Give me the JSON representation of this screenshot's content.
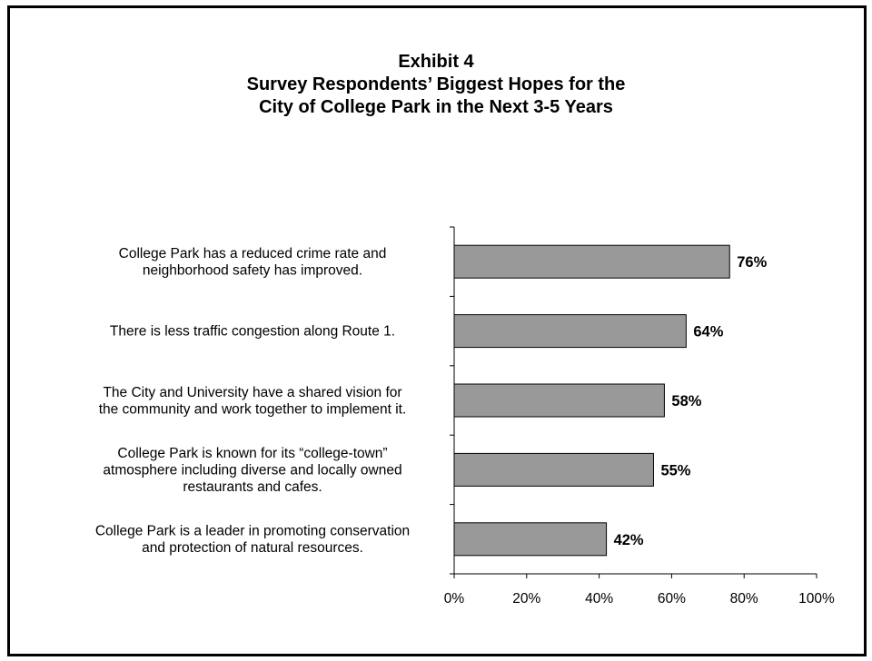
{
  "chart_data": {
    "type": "bar",
    "orientation": "horizontal",
    "title_lines": [
      "Exhibit 4",
      "Survey Respondents’ Biggest Hopes for the",
      "City of College Park in the Next 3-5 Years"
    ],
    "categories": [
      [
        "College Park has a reduced crime rate and",
        "neighborhood safety has improved."
      ],
      [
        "There is less traffic congestion along Route 1."
      ],
      [
        "The City and University have a shared vision for",
        "the community and work together to implement it."
      ],
      [
        "College Park is known for its “college-town”",
        "atmosphere including diverse and locally owned",
        "restaurants and cafes."
      ],
      [
        "College Park is a leader in promoting conservation",
        "and protection of natural resources."
      ]
    ],
    "values": [
      76,
      64,
      58,
      55,
      42
    ],
    "data_labels": [
      "76%",
      "64%",
      "58%",
      "55%",
      "42%"
    ],
    "xlim": [
      0,
      100
    ],
    "x_ticks": [
      0,
      20,
      40,
      60,
      80,
      100
    ],
    "x_tick_labels": [
      "0%",
      "20%",
      "40%",
      "60%",
      "80%",
      "100%"
    ],
    "grid": false,
    "legend": "none",
    "bar_color": "#999999",
    "bar_edge_color": "#000000"
  }
}
